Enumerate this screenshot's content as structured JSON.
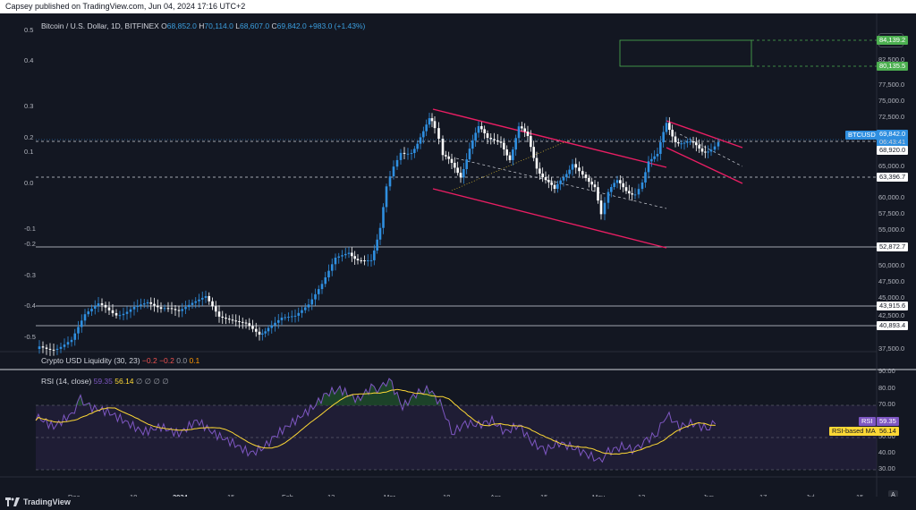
{
  "header": {
    "publish_text": "Capsey published on TradingView.com, Jun 04, 2024 17:16 UTC+2"
  },
  "legend": {
    "title": "Bitcoin / U.S. Dollar, 1D, BITFINEX",
    "o_label": "O",
    "o": "68,852.0",
    "h_label": "H",
    "h": "70,114.0",
    "l_label": "L",
    "l": "68,607.0",
    "c_label": "C",
    "c": "69,842.0",
    "change": "+983.0 (+1.43%)"
  },
  "currency_button": "USD",
  "price_axis": [
    "84,139.2",
    "82,500.0",
    "80,135.5",
    "77,500.0",
    "75,000.0",
    "72,500.0",
    "69,842.0",
    "68,920.0",
    "65,000.0",
    "63,396.7",
    "60,000.0",
    "57,500.0",
    "55,000.0",
    "52,872.7",
    "50,000.0",
    "47,500.0",
    "45,000.0",
    "43,915.6",
    "42,500.0",
    "40,893.4",
    "37,500.0"
  ],
  "price_tags": {
    "btc_symbol": "BTCUSD",
    "last": "69,842.0",
    "countdown": "06:43:41",
    "level_84": "84,139.2",
    "level_80": "80,135.5",
    "level_68": "68,920.0",
    "level_63": "63,396.7",
    "level_52": "52,872.7",
    "level_43": "43,915.6",
    "level_40": "40,893.4"
  },
  "left_axis": [
    "0.5",
    "0.4",
    "0.3",
    "0.2",
    "0.1",
    "0.0",
    "-0.1",
    "-0.2",
    "-0.3",
    "-0.4",
    "-0.5",
    "0.5",
    "0.4",
    "0.3",
    "0.2",
    "0.1",
    "0.0",
    "-0.1",
    "-0.2",
    "-0.3",
    "-0.4",
    "-0.5"
  ],
  "indicators": {
    "liquidity": {
      "name": "Crypto USD Liquidity (30, 23)",
      "v1": "−0.2",
      "v2": "−0.2",
      "v3": "0.0",
      "v4": "0.1"
    },
    "rsi": {
      "name": "RSI (14, close)",
      "v1": "59.35",
      "v2": "56.14",
      "nulls": "∅ ∅ ∅ ∅",
      "tag_rsi": "RSI",
      "tag_rsi_val": "59.35",
      "tag_ma": "RSI-based MA",
      "tag_ma_val": "56.14"
    },
    "rsi_axis": [
      "90.00",
      "80.00",
      "70.00",
      "60.00",
      "50.00",
      "40.00",
      "30.00"
    ]
  },
  "time_axis": [
    "Dec",
    "18",
    "2024",
    "15",
    "Feb",
    "13",
    "Mar",
    "18",
    "Apr",
    "15",
    "May",
    "13",
    "Jun",
    "17",
    "Jul",
    "15"
  ],
  "footer": {
    "brand": "TradingView",
    "auto": "A"
  },
  "colors": {
    "up": "#2f8fe0",
    "down": "#ffffff",
    "trend": "#e91e63",
    "rsi": "#7e57c2",
    "ma": "#fdd835",
    "green": "#4caf50"
  }
}
